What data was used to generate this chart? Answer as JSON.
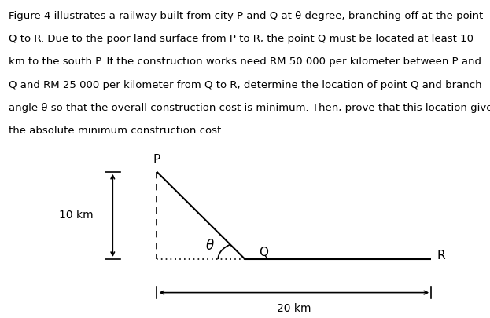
{
  "fig_width": 6.23,
  "fig_height": 4.05,
  "dpi": 100,
  "background_color": "#ffffff",
  "text_color": "#000000",
  "line_color": "#000000",
  "description_lines": [
    "Figure 4 illustrates a railway built from city P and Q at θ degree, branching off at the point",
    "Q to R. Due to the poor land surface from P to R, the point Q must be located at least 10",
    "km to the south P. If the construction works need RM 50 000 per kilometer between P and",
    "Q and RM 25 000 per kilometer from Q to R, determine the location of point Q and branch",
    "angle θ so that the overall construction cost is minimum. Then, prove that this location gives",
    "the absolute minimum construction cost."
  ],
  "label_P": "P",
  "label_Q": "Q",
  "label_R": "R",
  "label_theta": "θ",
  "label_10km": "10 km",
  "label_20km": "20 km",
  "label_figure": "Figure 4",
  "font_size_desc": 9.5,
  "font_size_label": 10,
  "font_size_figure": 10,
  "line_width": 1.5
}
